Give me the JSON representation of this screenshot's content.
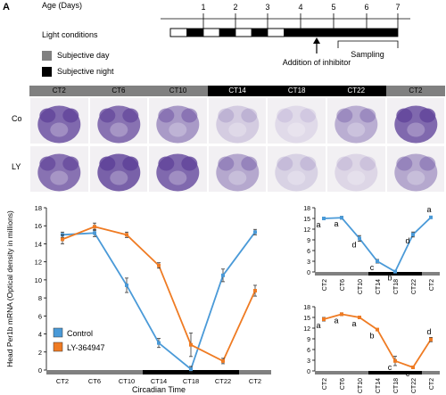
{
  "panel_letter": "A",
  "timeline": {
    "age_label": "Age (Days)",
    "days": [
      "1",
      "2",
      "3",
      "4",
      "5",
      "6",
      "7"
    ],
    "light_label": "Light conditions",
    "legend_day": "Subjective day",
    "legend_night": "Subjective night",
    "inhibitor_label": "Addition of inhibitor",
    "sampling_label": "Sampling",
    "colors": {
      "day": "#808080",
      "night": "#000000",
      "light": "#ffffff"
    }
  },
  "image_grid": {
    "columns": [
      "CT2",
      "CT6",
      "CT10",
      "CT14",
      "CT18",
      "CT22",
      "CT2"
    ],
    "rows": [
      "Co",
      "LY"
    ]
  },
  "chart_data": [
    {
      "type": "line",
      "ylabel": "Head Per1b mRNA (Optical density in millions)",
      "xlabel": "Circadian Time",
      "categories": [
        "CT2",
        "CT6",
        "CT10",
        "CT14",
        "CT18",
        "CT22",
        "CT2"
      ],
      "ylim": [
        0,
        18
      ],
      "yticks": [
        0,
        2,
        4,
        6,
        8,
        10,
        12,
        14,
        16,
        18
      ],
      "series": [
        {
          "name": "Control",
          "color": "#4a9ad8",
          "values": [
            15.0,
            15.2,
            9.4,
            3.0,
            0.1,
            10.5,
            15.3
          ],
          "errors": [
            0.3,
            0.4,
            0.8,
            0.5,
            0.3,
            0.7,
            0.3
          ]
        },
        {
          "name": "LY-364947",
          "color": "#ef7b23",
          "values": [
            14.5,
            15.9,
            15.0,
            11.6,
            2.8,
            1.0,
            8.8
          ],
          "errors": [
            0.5,
            0.4,
            0.3,
            0.3,
            1.3,
            0.3,
            0.6
          ]
        }
      ],
      "legend_position": "bottom-left"
    },
    {
      "type": "line",
      "categories": [
        "CT2",
        "CT6",
        "CT10",
        "CT14",
        "CT18",
        "CT22",
        "CT2"
      ],
      "ylim": [
        0,
        18
      ],
      "yticks": [
        0,
        3,
        6,
        9,
        12,
        15,
        18
      ],
      "series": [
        {
          "color": "#4a9ad8",
          "values": [
            15.0,
            15.2,
            9.4,
            3.0,
            0.1,
            10.5,
            15.3
          ],
          "errors": [
            0.3,
            0.4,
            0.8,
            0.5,
            0.3,
            0.7,
            0.3
          ]
        }
      ],
      "annotations": [
        "a",
        "a",
        "d",
        "c",
        "b",
        "d",
        "a"
      ]
    },
    {
      "type": "line",
      "categories": [
        "CT2",
        "CT6",
        "CT10",
        "CT14",
        "CT18",
        "CT22",
        "CT2"
      ],
      "ylim": [
        0,
        18
      ],
      "yticks": [
        0,
        3,
        6,
        9,
        12,
        15,
        18
      ],
      "series": [
        {
          "color": "#ef7b23",
          "values": [
            14.5,
            15.9,
            15.0,
            11.6,
            2.8,
            1.0,
            8.8
          ],
          "errors": [
            0.5,
            0.4,
            0.3,
            0.3,
            1.3,
            0.3,
            0.6
          ]
        }
      ],
      "annotations": [
        "a",
        "a",
        "a",
        "b",
        "c",
        "c",
        "d"
      ]
    }
  ]
}
